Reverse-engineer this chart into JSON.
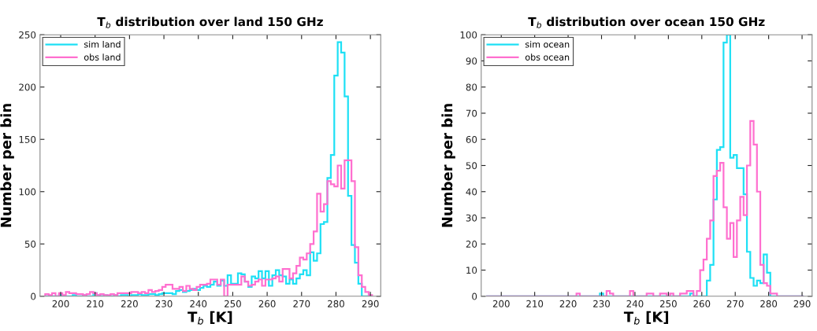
{
  "chart_data": [
    {
      "type": "histogram",
      "title": "T$_{b}$ distribution over land 150 GHz",
      "xlabel": "T$_{b}$ [K]",
      "ylabel": "Number per bin",
      "bins": [
        195.5,
        196.5,
        197.5,
        198.5,
        199.5,
        200.5,
        201.5,
        202.5,
        203.5,
        204.5,
        205.5,
        206.5,
        207.5,
        208.5,
        209.5,
        210.5,
        211.5,
        212.5,
        213.5,
        214.5,
        215.5,
        216.5,
        217.5,
        218.5,
        219.5,
        220.5,
        221.5,
        222.5,
        223.5,
        224.5,
        225.5,
        226.5,
        227.5,
        228.5,
        229.5,
        230.5,
        231.5,
        232.5,
        233.5,
        234.5,
        235.5,
        236.5,
        237.5,
        238.5,
        239.5,
        240.5,
        241.5,
        242.5,
        243.5,
        244.5,
        245.5,
        246.5,
        247.5,
        248.5,
        249.5,
        250.5,
        251.5,
        252.5,
        253.5,
        254.5,
        255.5,
        256.5,
        257.5,
        258.5,
        259.5,
        260.5,
        261.5,
        262.5,
        263.5,
        264.5,
        265.5,
        266.5,
        267.5,
        268.5,
        269.5,
        270.5,
        271.5,
        272.5,
        273.5,
        274.5,
        275.5,
        276.5,
        277.5,
        278.5,
        279.5,
        280.5,
        281.5,
        282.5,
        283.5,
        284.5,
        285.5,
        286.5,
        287.5,
        288.5,
        289.5,
        290.5
      ],
      "series": [
        {
          "name": "sim land",
          "color": "#1ee0f5",
          "values": [
            0,
            0,
            0,
            0,
            1,
            0,
            0,
            0,
            1,
            0,
            0,
            1,
            0,
            0,
            3,
            1,
            0,
            1,
            0,
            0,
            1,
            0,
            1,
            1,
            0,
            1,
            1,
            2,
            1,
            1,
            2,
            2,
            1,
            2,
            3,
            3,
            3,
            2,
            5,
            6,
            4,
            5,
            6,
            7,
            6,
            8,
            10,
            9,
            11,
            14,
            10,
            15,
            10,
            20,
            12,
            12,
            22,
            21,
            14,
            9,
            19,
            17,
            24,
            17,
            24,
            10,
            20,
            25,
            20,
            19,
            12,
            16,
            12,
            17,
            21,
            25,
            20,
            42,
            34,
            41,
            69,
            71,
            113,
            135,
            211,
            243,
            233,
            191,
            96,
            49,
            32,
            12,
            0,
            0,
            0
          ]
        },
        {
          "name": "obs land",
          "color": "#ff6fcf",
          "values": [
            2,
            1,
            3,
            0,
            3,
            1,
            4,
            3,
            3,
            2,
            2,
            1,
            2,
            4,
            3,
            1,
            2,
            1,
            1,
            2,
            1,
            3,
            3,
            3,
            3,
            4,
            4,
            3,
            4,
            3,
            6,
            4,
            5,
            6,
            9,
            11,
            11,
            7,
            7,
            9,
            5,
            10,
            7,
            6,
            9,
            11,
            11,
            12,
            16,
            16,
            11,
            16,
            0,
            11,
            11,
            11,
            11,
            19,
            14,
            10,
            11,
            14,
            16,
            10,
            16,
            16,
            17,
            19,
            14,
            26,
            26,
            17,
            22,
            29,
            37,
            35,
            41,
            50,
            62,
            98,
            81,
            88,
            110,
            107,
            105,
            125,
            103,
            130,
            130,
            110,
            47,
            20,
            9,
            4,
            1
          ]
        }
      ],
      "xlim": [
        194,
        293
      ],
      "ylim": [
        0,
        250
      ],
      "xticks": [
        200,
        210,
        220,
        230,
        240,
        250,
        260,
        270,
        280,
        290
      ],
      "yticks": [
        0,
        50,
        100,
        150,
        200,
        250
      ],
      "grid": false,
      "legend": "top left"
    },
    {
      "type": "histogram",
      "title": "T$_{b}$ distribution over ocean 150 GHz",
      "xlabel": "T$_{b}$ [K]",
      "ylabel": "Number per bin",
      "bins": [
        195.5,
        196.5,
        197.5,
        198.5,
        199.5,
        200.5,
        201.5,
        202.5,
        203.5,
        204.5,
        205.5,
        206.5,
        207.5,
        208.5,
        209.5,
        210.5,
        211.5,
        212.5,
        213.5,
        214.5,
        215.5,
        216.5,
        217.5,
        218.5,
        219.5,
        220.5,
        221.5,
        222.5,
        223.5,
        224.5,
        225.5,
        226.5,
        227.5,
        228.5,
        229.5,
        230.5,
        231.5,
        232.5,
        233.5,
        234.5,
        235.5,
        236.5,
        237.5,
        238.5,
        239.5,
        240.5,
        241.5,
        242.5,
        243.5,
        244.5,
        245.5,
        246.5,
        247.5,
        248.5,
        249.5,
        250.5,
        251.5,
        252.5,
        253.5,
        254.5,
        255.5,
        256.5,
        257.5,
        258.5,
        259.5,
        260.5,
        261.5,
        262.5,
        263.5,
        264.5,
        265.5,
        266.5,
        267.5,
        268.5,
        269.5,
        270.5,
        271.5,
        272.5,
        273.5,
        274.5,
        275.5,
        276.5,
        277.5,
        278.5,
        279.5,
        280.5,
        281.5,
        282.5,
        283.5,
        284.5,
        285.5,
        286.5,
        287.5,
        288.5,
        289.5,
        290.5
      ],
      "series": [
        {
          "name": "sim ocean",
          "color": "#1ee0f5",
          "values": [
            0,
            0,
            0,
            0,
            0,
            0,
            0,
            0,
            0,
            0,
            0,
            0,
            0,
            0,
            0,
            0,
            0,
            0,
            0,
            0,
            0,
            0,
            0,
            0,
            0,
            0,
            0,
            0,
            0,
            0,
            0,
            0,
            0,
            0,
            1,
            0,
            0,
            0,
            0,
            0,
            0,
            0,
            0,
            0,
            0,
            0,
            0,
            0,
            0,
            0,
            0,
            0,
            0,
            0,
            0,
            0,
            0,
            0,
            0,
            0,
            0,
            1,
            0,
            0,
            0,
            0,
            6,
            12,
            37,
            56,
            57,
            97,
            100,
            53,
            54,
            49,
            49,
            39,
            17,
            7,
            4,
            6,
            5,
            16,
            9,
            0,
            0,
            0,
            0,
            0,
            0,
            0,
            0,
            0,
            0
          ]
        },
        {
          "name": "obs ocean",
          "color": "#ff6fcf",
          "values": [
            0,
            0,
            0,
            0,
            0,
            0,
            0,
            0,
            0,
            0,
            0,
            0,
            0,
            0,
            0,
            0,
            0,
            0,
            0,
            0,
            0,
            0,
            0,
            0,
            0,
            0,
            0,
            1,
            0,
            0,
            0,
            0,
            0,
            0,
            0,
            0,
            2,
            1,
            0,
            0,
            0,
            0,
            0,
            2,
            0,
            0,
            0,
            0,
            1,
            1,
            0,
            0,
            1,
            1,
            0,
            1,
            0,
            0,
            1,
            1,
            2,
            2,
            0,
            2,
            10,
            14,
            22,
            29,
            46,
            48,
            51,
            34,
            22,
            28,
            15,
            29,
            38,
            31,
            50,
            67,
            58,
            40,
            12,
            5,
            4,
            1,
            1,
            0,
            0,
            0,
            0,
            0,
            0,
            0,
            0
          ]
        }
      ],
      "xlim": [
        194,
        293
      ],
      "ylim": [
        0,
        100
      ],
      "xticks": [
        200,
        210,
        220,
        230,
        240,
        250,
        260,
        270,
        280,
        290
      ],
      "yticks": [
        0,
        10,
        20,
        30,
        40,
        50,
        60,
        70,
        80,
        90,
        100
      ],
      "grid": false,
      "legend": "top left"
    }
  ]
}
